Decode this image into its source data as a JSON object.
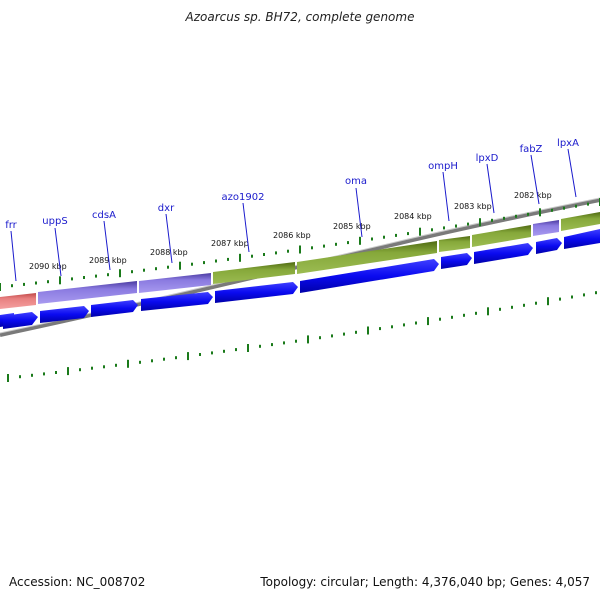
{
  "header": {
    "title": "Azoarcus sp. BH72, complete genome"
  },
  "footer": {
    "accession": "Accession: NC_008702",
    "topology": "Topology: circular; Length: 4,376,040 bp; Genes: 4,057"
  },
  "map": {
    "position_labels": [
      "2090 kbp",
      "2089 kbp",
      "2088 kbp",
      "2087 kbp",
      "2086 kbp",
      "2085 kbp",
      "2084 kbp",
      "2083 kbp",
      "2082 kbp"
    ],
    "genes": [
      "frr",
      "uppS",
      "cdsA",
      "dxr",
      "azo1902",
      "oma",
      "ompH",
      "lpxD",
      "fabZ",
      "lpxA"
    ],
    "colors": {
      "cog_green": "#7b9b2e",
      "cog_purple": "#8a7ae0",
      "cog_red": "#e88080",
      "cds_blue": "#1010f0",
      "backbone": "#808080",
      "tick": "#1a7a1a",
      "gene_label": "#1a1acc"
    }
  }
}
